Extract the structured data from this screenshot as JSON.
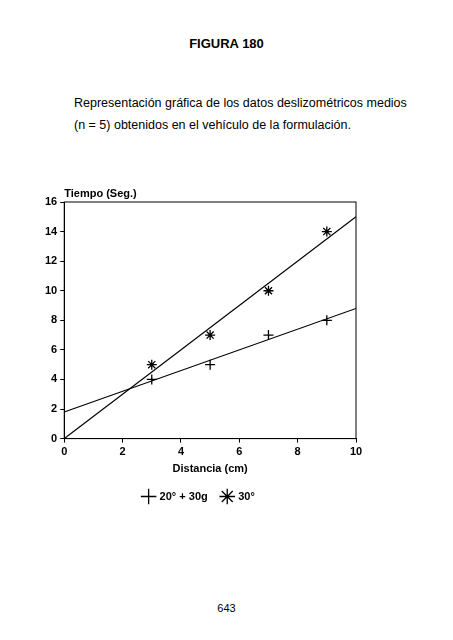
{
  "header": "FIGURA 180",
  "caption": "Representación gráfica de los datos deslizométricos medios (n = 5) obtenidos en el vehículo de la formulación.",
  "page_number": "643",
  "chart_data": {
    "type": "scatter",
    "x_label": "Distancia (cm)",
    "y_label": "Tiempo (Seg.)",
    "xlim": [
      0,
      10
    ],
    "xticks": [
      0,
      2,
      4,
      6,
      8,
      10
    ],
    "ylim": [
      0,
      16
    ],
    "yticks": [
      0,
      2,
      4,
      6,
      8,
      10,
      12,
      14,
      16
    ],
    "grid": false,
    "legend": "bottom",
    "series": [
      {
        "name": "20° + 30g",
        "color": "#000000",
        "marker": "plus",
        "x": [
          3,
          5,
          7,
          9
        ],
        "values": [
          4,
          5,
          7,
          8
        ],
        "line_x": [
          0,
          10
        ],
        "line_values": [
          1.8,
          8.8
        ]
      },
      {
        "name": "30°",
        "color": "#000000",
        "marker": "star",
        "x": [
          3,
          5,
          7,
          9
        ],
        "values": [
          5,
          7,
          10,
          14
        ],
        "line_x": [
          0,
          10
        ],
        "line_values": [
          0,
          15
        ]
      }
    ]
  }
}
